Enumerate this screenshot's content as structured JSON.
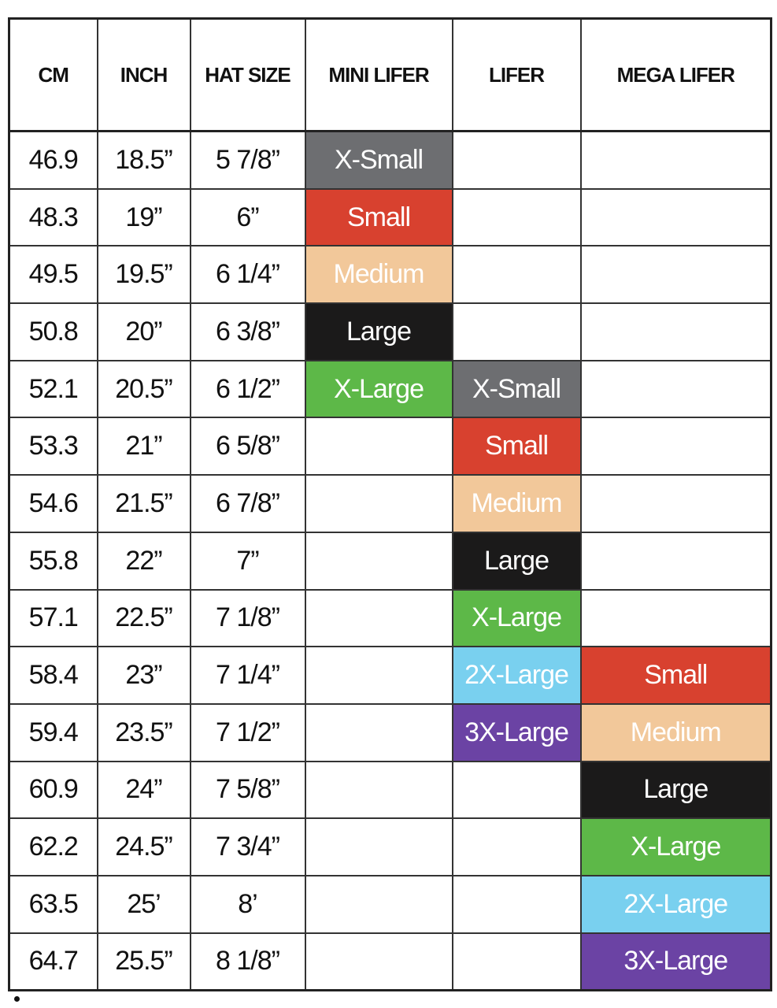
{
  "headers": [
    "CM",
    "INCH",
    "HAT SIZE",
    "MINI LIFER",
    "LIFER",
    "MEGA LIFER"
  ],
  "colors": {
    "X-Small": "#6d6e71",
    "Small": "#d8412f",
    "Medium": "#f2c89a",
    "Large": "#1b1a1a",
    "X-Large": "#5db848",
    "2X-Large": "#79d0ef",
    "3X-Large": "#6b43a4"
  },
  "rows": [
    {
      "cm": "46.9",
      "inch": "18.5”",
      "hat": "5 7/8”",
      "mini": "X-Small",
      "lifer": "",
      "mega": ""
    },
    {
      "cm": "48.3",
      "inch": "19”",
      "hat": "6”",
      "mini": "Small",
      "lifer": "",
      "mega": ""
    },
    {
      "cm": "49.5",
      "inch": "19.5”",
      "hat": "6 1/4”",
      "mini": "Medium",
      "lifer": "",
      "mega": ""
    },
    {
      "cm": "50.8",
      "inch": "20”",
      "hat": "6 3/8”",
      "mini": "Large",
      "lifer": "",
      "mega": ""
    },
    {
      "cm": "52.1",
      "inch": "20.5”",
      "hat": "6 1/2”",
      "mini": "X-Large",
      "lifer": "X-Small",
      "mega": ""
    },
    {
      "cm": "53.3",
      "inch": "21”",
      "hat": "6 5/8”",
      "mini": "",
      "lifer": "Small",
      "mega": ""
    },
    {
      "cm": "54.6",
      "inch": "21.5”",
      "hat": "6 7/8”",
      "mini": "",
      "lifer": "Medium",
      "mega": ""
    },
    {
      "cm": "55.8",
      "inch": "22”",
      "hat": "7”",
      "mini": "",
      "lifer": "Large",
      "mega": ""
    },
    {
      "cm": "57.1",
      "inch": "22.5”",
      "hat": "7 1/8”",
      "mini": "",
      "lifer": "X-Large",
      "mega": ""
    },
    {
      "cm": "58.4",
      "inch": "23”",
      "hat": "7 1/4”",
      "mini": "",
      "lifer": "2X-Large",
      "mega": "Small"
    },
    {
      "cm": "59.4",
      "inch": "23.5”",
      "hat": "7 1/2”",
      "mini": "",
      "lifer": "3X-Large",
      "mega": "Medium"
    },
    {
      "cm": "60.9",
      "inch": "24”",
      "hat": "7 5/8”",
      "mini": "",
      "lifer": "",
      "mega": "Large"
    },
    {
      "cm": "62.2",
      "inch": "24.5”",
      "hat": "7 3/4”",
      "mini": "",
      "lifer": "",
      "mega": "X-Large"
    },
    {
      "cm": "63.5",
      "inch": "25’",
      "hat": "8’",
      "mini": "",
      "lifer": "",
      "mega": "2X-Large"
    },
    {
      "cm": "64.7",
      "inch": "25.5”",
      "hat": "8 1/8”",
      "mini": "",
      "lifer": "",
      "mega": "3X-Large"
    }
  ]
}
